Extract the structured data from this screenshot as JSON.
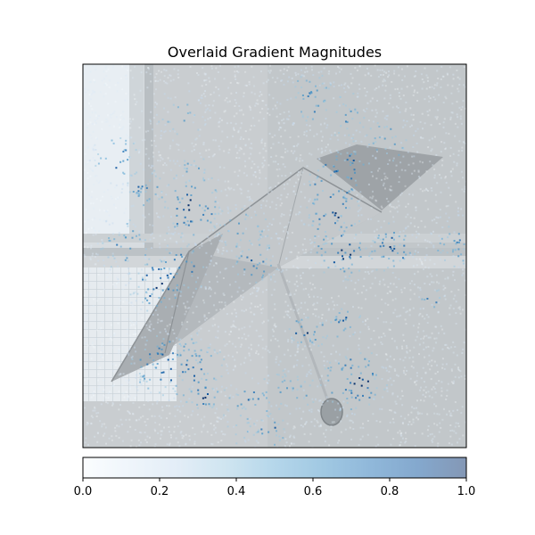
{
  "chart_data": {
    "type": "heatmap",
    "title": "Overlaid Gradient Magnitudes",
    "xlabel": "",
    "ylabel": "",
    "axis_ticks_visible": false,
    "grid": false,
    "background_image": "grayscale photo of an open umbrella lying on a floor near a window",
    "overlay_colormap": "Blues",
    "overlay_alpha": 0.5,
    "colorbar": {
      "orientation": "horizontal",
      "placement": "bottom",
      "range": [
        0.0,
        1.0
      ],
      "ticks": [
        0.0,
        0.2,
        0.4,
        0.6,
        0.8,
        1.0
      ],
      "tick_labels": [
        "0.0",
        "0.2",
        "0.4",
        "0.6",
        "0.8",
        "1.0"
      ],
      "colors": [
        "#f7fbff",
        "#deebf7",
        "#c6dbef",
        "#9ecae1",
        "#6baed6",
        "#4292c6",
        "#2171b5",
        "#08519c",
        "#08306b"
      ]
    }
  }
}
